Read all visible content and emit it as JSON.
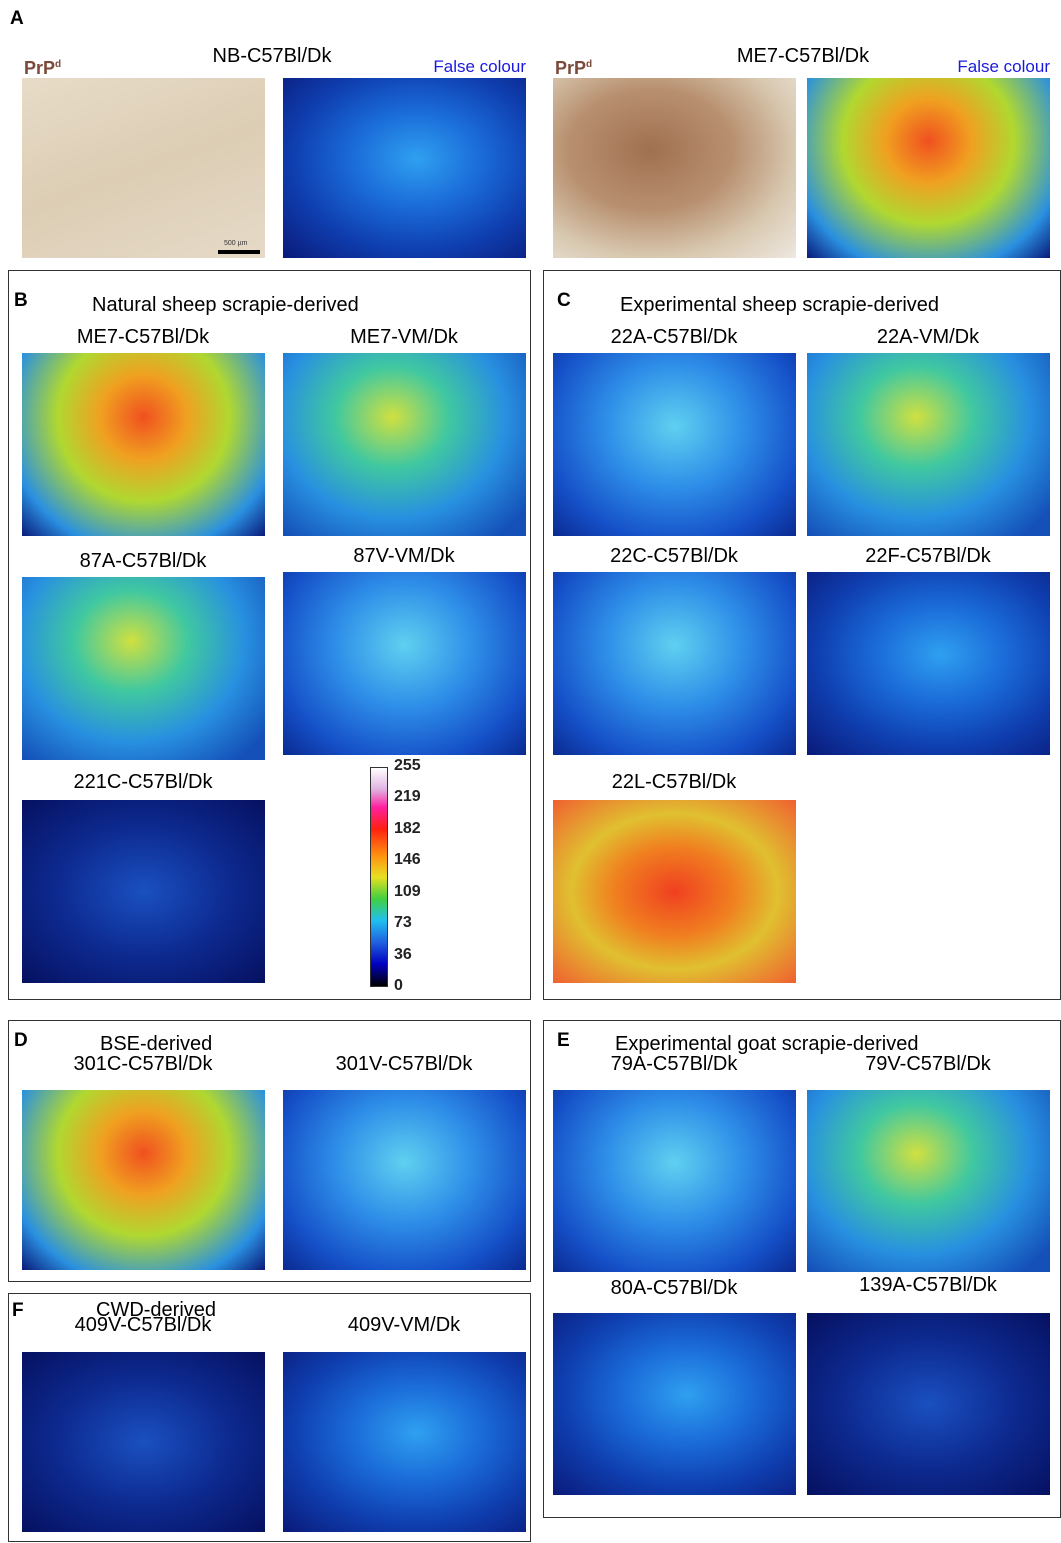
{
  "figure": {
    "panel_a": {
      "letter": "A",
      "stains": [
        {
          "label": "PrP",
          "superscript": "d",
          "title": "NB-C57Bl/Dk",
          "false_colour": "False colour"
        },
        {
          "label": "PrP",
          "superscript": "d",
          "title": "ME7-C57Bl/Dk",
          "false_colour": "False colour"
        }
      ],
      "scale_bar": "500 µm"
    },
    "panels": [
      {
        "letter": "B",
        "title": "Natural sheep scrapie-derived",
        "images": [
          "ME7-C57Bl/Dk",
          "ME7-VM/Dk",
          "87A-C57Bl/Dk",
          "87V-VM/Dk",
          "221C-C57Bl/Dk"
        ]
      },
      {
        "letter": "C",
        "title": "Experimental sheep scrapie-derived",
        "images": [
          "22A-C57Bl/Dk",
          "22A-VM/Dk",
          "22C-C57Bl/Dk",
          "22F-C57Bl/Dk",
          "22L-C57Bl/Dk"
        ]
      },
      {
        "letter": "D",
        "title": "BSE-derived",
        "images": [
          "301C-C57Bl/Dk",
          "301V-C57Bl/Dk"
        ]
      },
      {
        "letter": "E",
        "title": "Experimental goat scrapie-derived",
        "images": [
          "79A-C57Bl/Dk",
          "79V-C57Bl/Dk",
          "80A-C57Bl/Dk",
          "139A-C57Bl/Dk"
        ]
      },
      {
        "letter": "F",
        "title": "CWD-derived",
        "images": [
          "409V-C57Bl/Dk",
          "409V-VM/Dk"
        ]
      }
    ],
    "colorbar": {
      "ticks": [
        255,
        219,
        182,
        146,
        109,
        73,
        36,
        0
      ]
    }
  }
}
